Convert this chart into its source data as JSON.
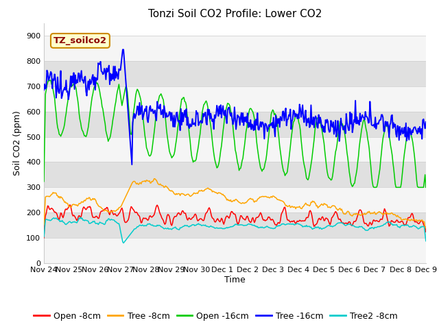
{
  "title": "Tonzi Soil CO2 Profile: Lower CO2",
  "xlabel": "Time",
  "ylabel": "Soil CO2 (ppm)",
  "watermark": "TZ_soilco2",
  "ylim": [
    0,
    950
  ],
  "yticks": [
    0,
    100,
    200,
    300,
    400,
    500,
    600,
    700,
    800,
    900
  ],
  "background_color": "#ffffff",
  "plot_bg_color": "#e8e8e8",
  "series": {
    "open_8cm": {
      "label": "Open -8cm",
      "color": "#ff0000"
    },
    "tree_8cm": {
      "label": "Tree -8cm",
      "color": "#ffa500"
    },
    "open_16cm": {
      "label": "Open -16cm",
      "color": "#00cc00"
    },
    "tree_16cm": {
      "label": "Tree -16cm",
      "color": "#0000ff"
    },
    "tree2_8cm": {
      "label": "Tree2 -8cm",
      "color": "#00cccc"
    }
  },
  "xtick_labels": [
    "Nov 24",
    "Nov 25",
    "Nov 26",
    "Nov 27",
    "Nov 28",
    "Nov 29",
    "Nov 30",
    "Dec 1",
    "Dec 2",
    "Dec 3",
    "Dec 4",
    "Dec 5",
    "Dec 6",
    "Dec 7",
    "Dec 8",
    "Dec 9"
  ],
  "n_points": 500,
  "title_fontsize": 11,
  "axis_label_fontsize": 9,
  "tick_fontsize": 8,
  "legend_fontsize": 9,
  "band_colors": [
    "#f5f5f5",
    "#e0e0e0"
  ]
}
